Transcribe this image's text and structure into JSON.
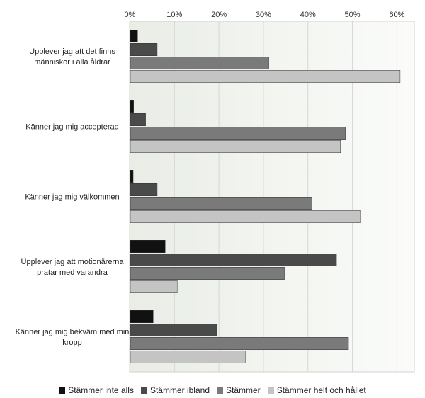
{
  "chart_data": {
    "type": "bar",
    "orientation": "horizontal",
    "categories": [
      [
        "Upplever jag att det finns",
        "människor i alla åldrar"
      ],
      [
        "Känner jag mig accepterad"
      ],
      [
        "Känner jag mig välkommen"
      ],
      [
        "Upplever jag att motionärerna",
        "pratar med varandra"
      ],
      [
        "Känner jag mig bekväm med min",
        "kropp"
      ]
    ],
    "series": [
      {
        "name": "Stämmer inte alls",
        "color": "#111111",
        "values": [
          1.8,
          0.9,
          0.8,
          8.0,
          5.3
        ]
      },
      {
        "name": "Stämmer ibland",
        "color": "#4a4a4a",
        "values": [
          6.2,
          3.6,
          6.2,
          46.5,
          19.6
        ]
      },
      {
        "name": "Stämmer",
        "color": "#7a7a7a",
        "values": [
          31.3,
          48.5,
          41.0,
          34.8,
          49.2
        ]
      },
      {
        "name": "Stämmer helt och hållet",
        "color": "#c4c4c4",
        "values": [
          60.8,
          47.4,
          51.8,
          10.7,
          26.0
        ]
      }
    ],
    "x_ticks": [
      "0%",
      "10%",
      "20%",
      "30%",
      "40%",
      "50%",
      "60%"
    ],
    "xlim": [
      0,
      64
    ],
    "xlabel": "",
    "ylabel": "",
    "grid": true,
    "legend_position": "bottom"
  }
}
